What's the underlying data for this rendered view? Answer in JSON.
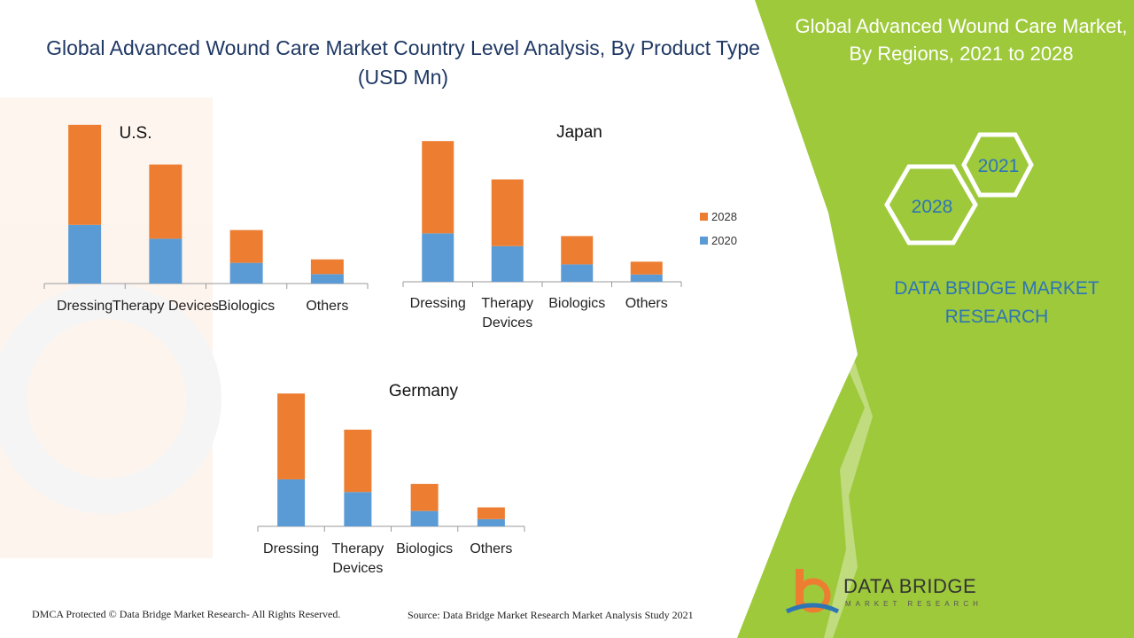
{
  "header": {
    "title": "Global  Advanced Wound Care Market Country Level Analysis, By Product Type (USD Mn)"
  },
  "side_panel": {
    "title": "Global Advanced Wound Care Market, By Regions, 2021 to 2028",
    "hex_a": "2021",
    "hex_b": "2028",
    "brand": "DATA BRIDGE MARKET RESEARCH",
    "color": "#9ec93b"
  },
  "footer": {
    "copyright": "DMCA Protected © Data Bridge Market Research- All Rights Reserved.",
    "source": "Source: Data Bridge Market Research Market Analysis Study 2021"
  },
  "logo": {
    "name": "DATA BRIDGE",
    "sub": "MARKET RESEARCH"
  },
  "colors": {
    "series_2020": "#5b9bd5",
    "series_2028": "#ed7d31",
    "title": "#1f3864",
    "brand_blue": "#2e75b6"
  },
  "chart_data": [
    {
      "type": "bar",
      "stacked": true,
      "title": "U.S.",
      "categories": [
        "Dressing",
        "Therapy Devices",
        "Biologics",
        "Others"
      ],
      "series": [
        {
          "name": "2020",
          "values": [
            68,
            52,
            24,
            11
          ]
        },
        {
          "name": "2028",
          "values": [
            116,
            86,
            38,
            17
          ]
        }
      ],
      "ylim": [
        0,
        190
      ],
      "legend": "none"
    },
    {
      "type": "bar",
      "stacked": true,
      "title": "Japan",
      "categories": [
        "Dressing",
        "Therapy Devices",
        "Biologics",
        "Others"
      ],
      "series": [
        {
          "name": "2020",
          "values": [
            53,
            39,
            19,
            8
          ]
        },
        {
          "name": "2028",
          "values": [
            101,
            73,
            31,
            14
          ]
        }
      ],
      "ylim": [
        0,
        160
      ],
      "legend": "right"
    },
    {
      "type": "bar",
      "stacked": true,
      "title": "Germany",
      "categories": [
        "Dressing",
        "Therapy Devices",
        "Biologics",
        "Others"
      ],
      "series": [
        {
          "name": "2020",
          "values": [
            52,
            38,
            17,
            8
          ]
        },
        {
          "name": "2028",
          "values": [
            95,
            69,
            30,
            13
          ]
        }
      ],
      "ylim": [
        0,
        150
      ],
      "legend": "none"
    }
  ]
}
